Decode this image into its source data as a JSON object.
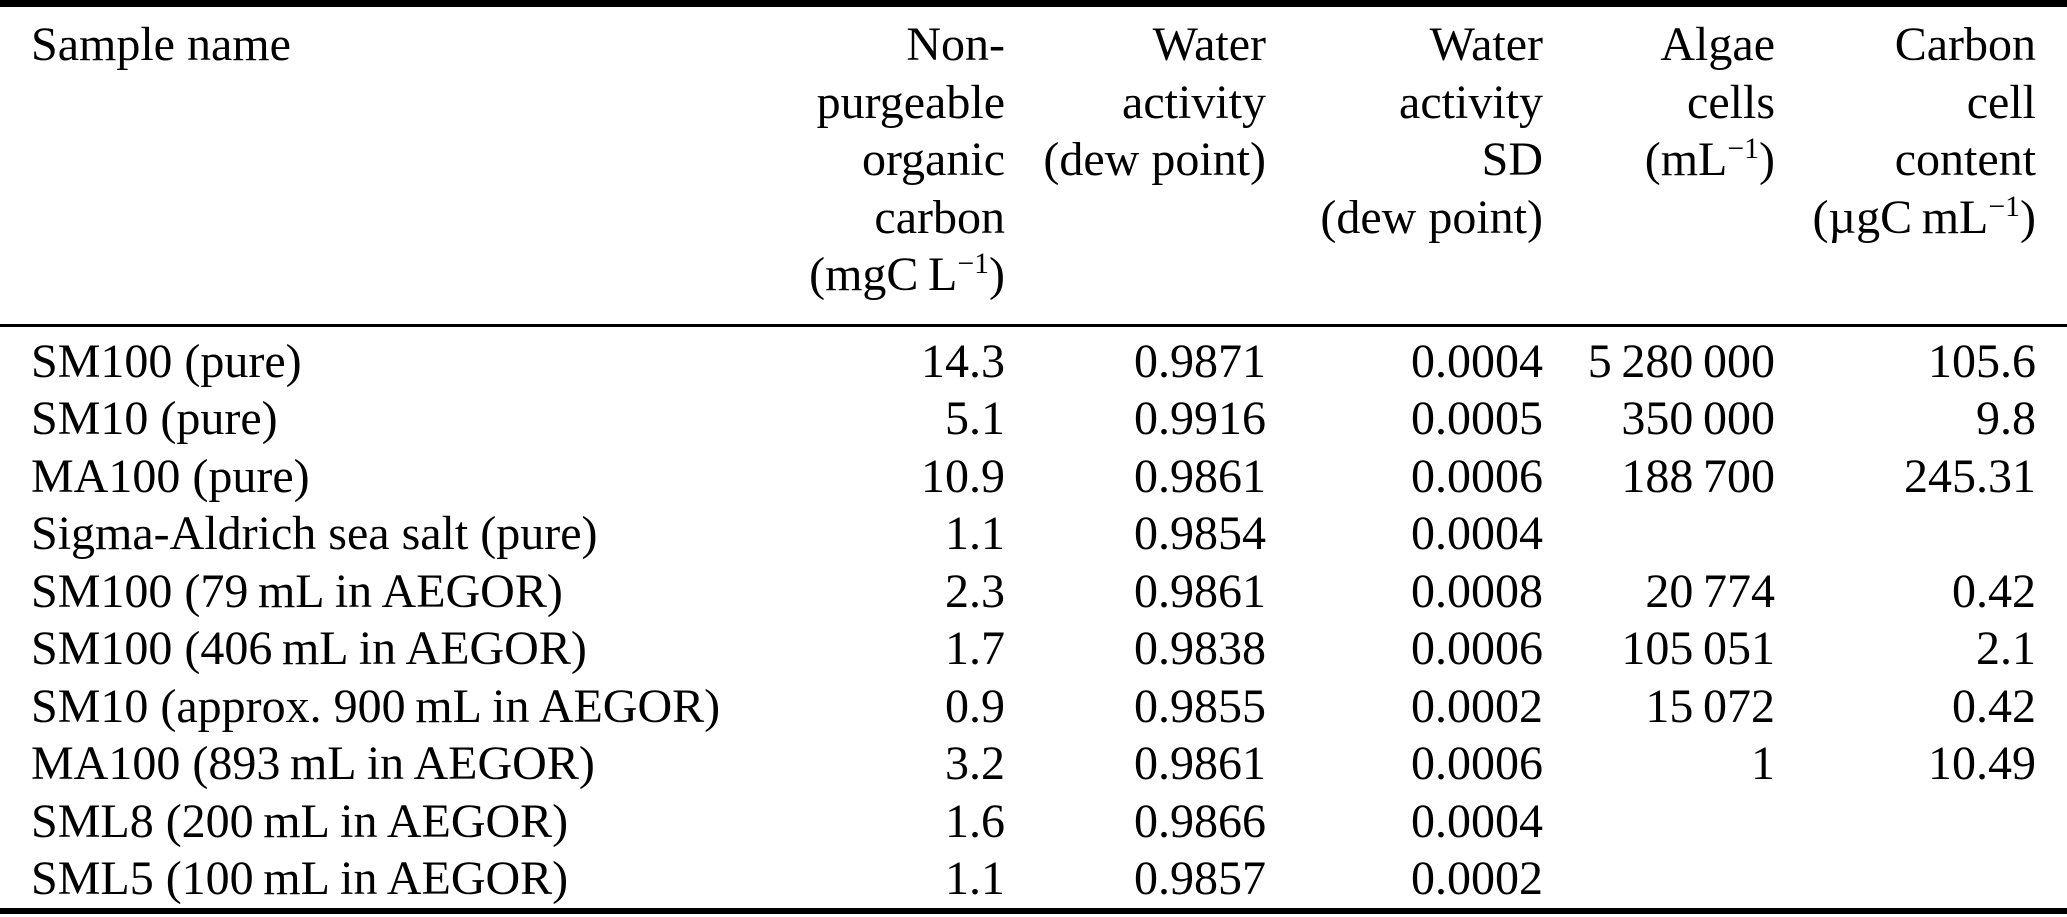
{
  "page": {
    "background_color": "#ffffff",
    "text_color": "#000000",
    "rule_color": "#000000"
  },
  "table": {
    "columns": [
      {
        "id": "sample-name",
        "align": "left",
        "lines": [
          "Sample name"
        ]
      },
      {
        "id": "non-purgeable-organic-carbon",
        "align": "right",
        "lines": [
          "Non-",
          "purgeable",
          "organic",
          "carbon",
          "(mgC L^{−1})"
        ]
      },
      {
        "id": "water-activity",
        "align": "right",
        "lines": [
          "Water",
          "activity",
          "(dew point)"
        ]
      },
      {
        "id": "water-activity-sd",
        "align": "right",
        "lines": [
          "Water",
          "activity",
          "SD",
          "(dew point)"
        ]
      },
      {
        "id": "algae-cells",
        "align": "right",
        "lines": [
          "Algae",
          "cells",
          "(mL^{−1})"
        ]
      },
      {
        "id": "carbon-cell-content",
        "align": "right",
        "lines": [
          "Carbon",
          "cell",
          "content",
          "(µgC mL^{−1})"
        ]
      }
    ],
    "rows": [
      {
        "cells": [
          "SM100 (pure)",
          "14.3",
          "0.9871",
          "0.0004",
          "5 280 000",
          "105.6"
        ]
      },
      {
        "cells": [
          "SM10 (pure)",
          "5.1",
          "0.9916",
          "0.0005",
          "350 000",
          "9.8"
        ]
      },
      {
        "cells": [
          "MA100 (pure)",
          "10.9",
          "0.9861",
          "0.0006",
          "188 700",
          "245.31"
        ]
      },
      {
        "cells": [
          "Sigma-Aldrich sea salt (pure)",
          "1.1",
          "0.9854",
          "0.0004",
          "",
          ""
        ]
      },
      {
        "cells": [
          "SM100 (79 mL in AEGOR)",
          "2.3",
          "0.9861",
          "0.0008",
          "20 774",
          "0.42"
        ]
      },
      {
        "cells": [
          "SM100 (406 mL in AEGOR)",
          "1.7",
          "0.9838",
          "0.0006",
          "105 051",
          "2.1"
        ]
      },
      {
        "cells": [
          "SM10 (approx. 900 mL in AEGOR)",
          "0.9",
          "0.9855",
          "0.0002",
          "15 072",
          "0.42"
        ]
      },
      {
        "cells": [
          "MA100 (893 mL in AEGOR)",
          "3.2",
          "0.9861",
          "0.0006",
          "1",
          "10.49"
        ]
      },
      {
        "cells": [
          "SML8 (200 mL in AEGOR)",
          "1.6",
          "0.9866",
          "0.0004",
          "",
          ""
        ]
      },
      {
        "cells": [
          "SML5 (100 mL in AEGOR)",
          "1.1",
          "0.9857",
          "0.0002",
          "",
          ""
        ]
      }
    ]
  }
}
